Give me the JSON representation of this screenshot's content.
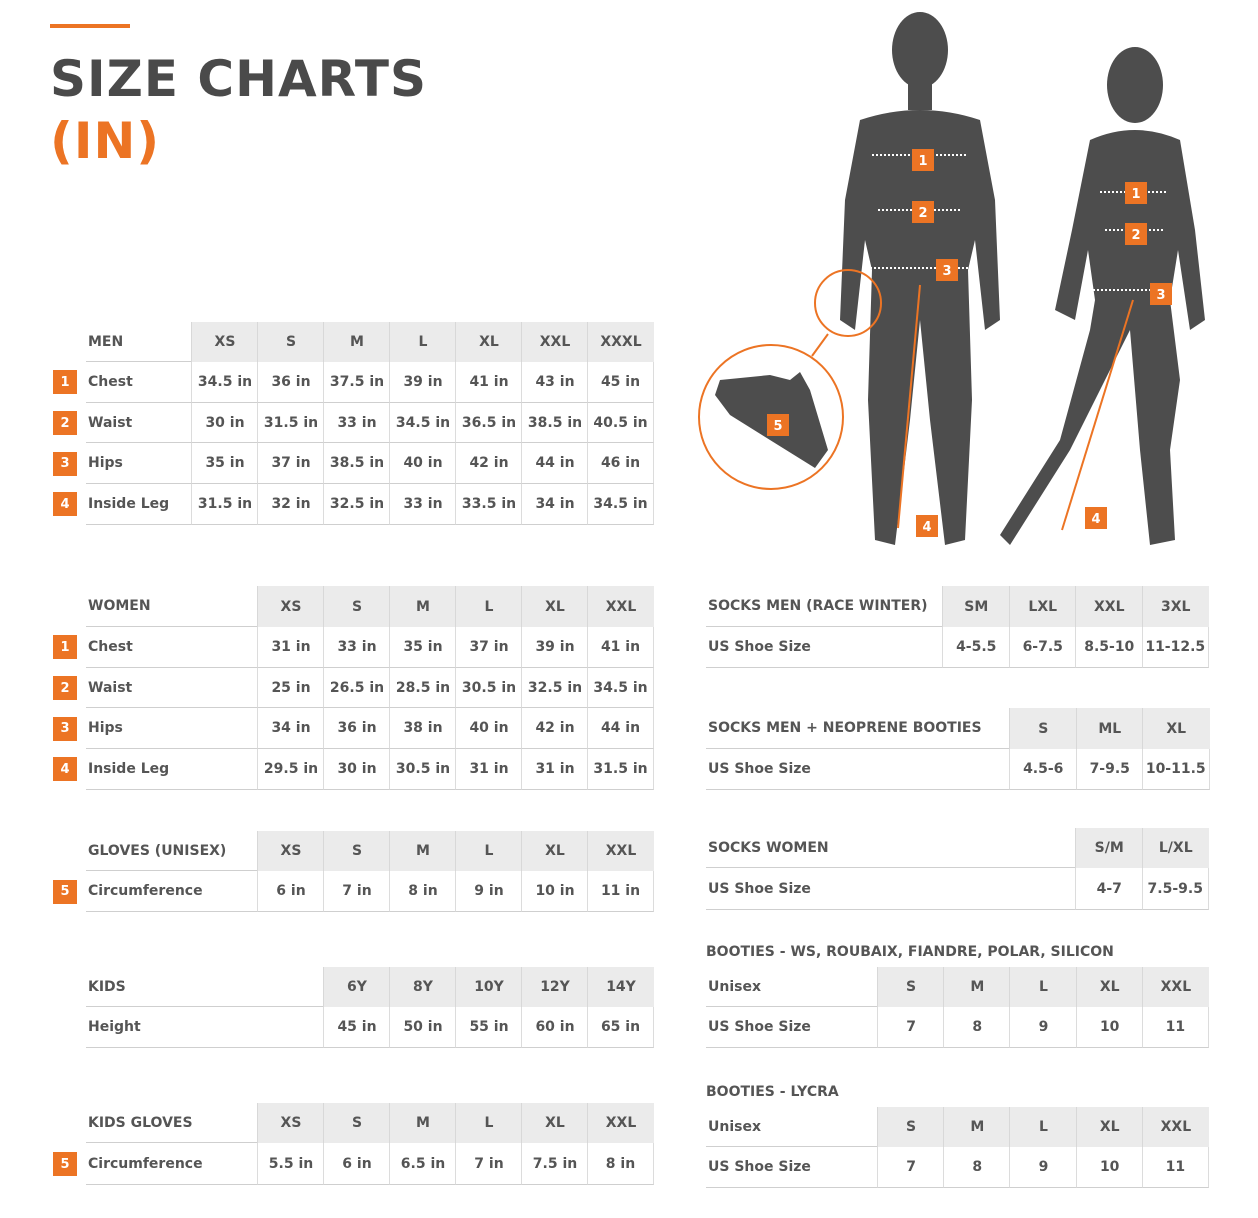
{
  "header": {
    "title": "SIZE CHARTS",
    "unit": "(IN)"
  },
  "colors": {
    "accent": "#ec7424",
    "text": "#4a4a4a",
    "figure": "#4d4d4d",
    "header_bg": "#ebebeb"
  },
  "figure_markers": [
    "1",
    "2",
    "3",
    "4",
    "5"
  ],
  "tables": {
    "men": {
      "title": "MEN",
      "sizes": [
        "XS",
        "S",
        "M",
        "L",
        "XL",
        "XXL",
        "XXXL"
      ],
      "rows": [
        {
          "marker": "1",
          "label": "Chest",
          "values": [
            "34.5 in",
            "36 in",
            "37.5 in",
            "39 in",
            "41 in",
            "43 in",
            "45 in"
          ]
        },
        {
          "marker": "2",
          "label": "Waist",
          "values": [
            "30 in",
            "31.5 in",
            "33 in",
            "34.5 in",
            "36.5 in",
            "38.5 in",
            "40.5 in"
          ]
        },
        {
          "marker": "3",
          "label": "Hips",
          "values": [
            "35 in",
            "37 in",
            "38.5 in",
            "40 in",
            "42 in",
            "44 in",
            "46 in"
          ]
        },
        {
          "marker": "4",
          "label": "Inside Leg",
          "values": [
            "31.5 in",
            "32 in",
            "32.5 in",
            "33 in",
            "33.5 in",
            "34 in",
            "34.5 in"
          ]
        }
      ]
    },
    "women": {
      "title": "WOMEN",
      "sizes": [
        "XS",
        "S",
        "M",
        "L",
        "XL",
        "XXL"
      ],
      "rows": [
        {
          "marker": "1",
          "label": "Chest",
          "values": [
            "31 in",
            "33 in",
            "35 in",
            "37 in",
            "39 in",
            "41 in"
          ]
        },
        {
          "marker": "2",
          "label": "Waist",
          "values": [
            "25 in",
            "26.5 in",
            "28.5 in",
            "30.5 in",
            "32.5 in",
            "34.5 in"
          ]
        },
        {
          "marker": "3",
          "label": "Hips",
          "values": [
            "34 in",
            "36 in",
            "38 in",
            "40 in",
            "42 in",
            "44 in"
          ]
        },
        {
          "marker": "4",
          "label": "Inside Leg",
          "values": [
            "29.5 in",
            "30 in",
            "30.5 in",
            "31 in",
            "31 in",
            "31.5 in"
          ]
        }
      ]
    },
    "gloves": {
      "title": "GLOVES (UNISEX)",
      "sizes": [
        "XS",
        "S",
        "M",
        "L",
        "XL",
        "XXL"
      ],
      "rows": [
        {
          "marker": "5",
          "label": "Circumference",
          "values": [
            "6 in",
            "7 in",
            "8 in",
            "9 in",
            "10 in",
            "11 in"
          ]
        }
      ]
    },
    "kids": {
      "title": "KIDS",
      "sizes": [
        "6Y",
        "8Y",
        "10Y",
        "12Y",
        "14Y"
      ],
      "rows": [
        {
          "label": "Height",
          "values": [
            "45 in",
            "50 in",
            "55 in",
            "60 in",
            "65 in"
          ]
        }
      ]
    },
    "kids_gloves": {
      "title": "KIDS GLOVES",
      "sizes": [
        "XS",
        "S",
        "M",
        "L",
        "XL",
        "XXL"
      ],
      "rows": [
        {
          "marker": "5",
          "label": "Circumference",
          "values": [
            "5.5 in",
            "6 in",
            "6.5 in",
            "7 in",
            "7.5 in",
            "8 in"
          ]
        }
      ]
    },
    "socks_men_race": {
      "title": "SOCKS MEN (RACE WINTER)",
      "sizes": [
        "SM",
        "LXL",
        "XXL",
        "3XL"
      ],
      "rows": [
        {
          "label": "US Shoe Size",
          "values": [
            "4-5.5",
            "6-7.5",
            "8.5-10",
            "11-12.5"
          ]
        }
      ]
    },
    "socks_men_neoprene": {
      "title": "SOCKS MEN + NEOPRENE BOOTIES",
      "sizes": [
        "S",
        "ML",
        "XL"
      ],
      "rows": [
        {
          "label": "US Shoe Size",
          "values": [
            "4.5-6",
            "7-9.5",
            "10-11.5"
          ]
        }
      ]
    },
    "socks_women": {
      "title": "SOCKS WOMEN",
      "sizes": [
        "S/M",
        "L/XL"
      ],
      "rows": [
        {
          "label": "US Shoe Size",
          "values": [
            "4-7",
            "7.5-9.5"
          ]
        }
      ]
    },
    "booties_ws": {
      "heading": "BOOTIES - WS, ROUBAIX, FIANDRE, POLAR, SILICON",
      "title": "Unisex",
      "sizes": [
        "S",
        "M",
        "L",
        "XL",
        "XXL"
      ],
      "rows": [
        {
          "label": "US Shoe Size",
          "values": [
            "7",
            "8",
            "9",
            "10",
            "11"
          ]
        }
      ]
    },
    "booties_lycra": {
      "heading": "BOOTIES - LYCRA",
      "title": "Unisex",
      "sizes": [
        "S",
        "M",
        "L",
        "XL",
        "XXL"
      ],
      "rows": [
        {
          "label": "US Shoe Size",
          "values": [
            "7",
            "8",
            "9",
            "10",
            "11"
          ]
        }
      ]
    }
  }
}
